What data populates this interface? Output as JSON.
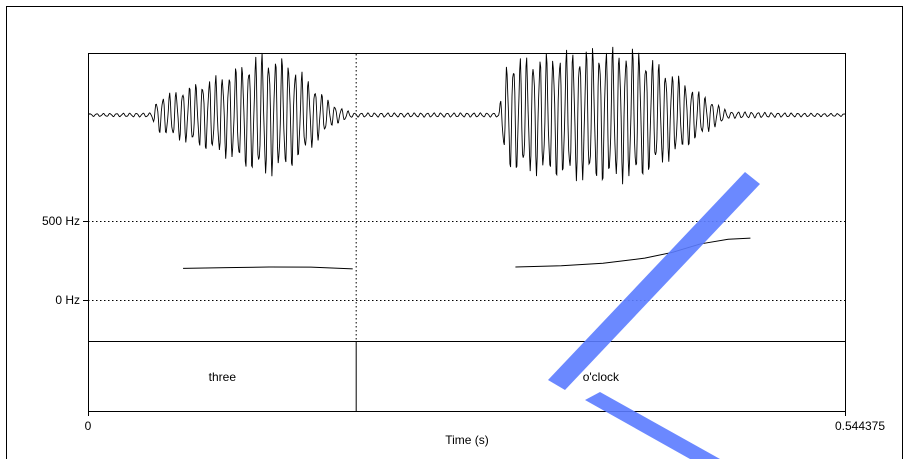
{
  "watermark": {
    "color": "#5b7cff"
  },
  "axes": {
    "time_label": "Time (s)",
    "time_start_label": "0",
    "time_end_label": "0.544375",
    "pitch_high_label": "500 Hz",
    "pitch_low_label": "0 Hz"
  },
  "chart_data": {
    "type": "line",
    "x_unit": "s",
    "xlim": [
      0,
      0.544375
    ],
    "pitch_ylim": [
      0,
      500
    ],
    "word_boundary_time": 0.1925,
    "words": [
      {
        "label": "three",
        "start": 0.0,
        "end": 0.1925
      },
      {
        "label": "o'clock",
        "start": 0.1925,
        "end": 0.544375
      }
    ],
    "series": [
      {
        "x": [
          0.068,
          0.1,
          0.13,
          0.16,
          0.19
        ],
        "y": [
          203,
          208,
          212,
          211,
          200
        ]
      },
      {
        "x": [
          0.307,
          0.34,
          0.37,
          0.4,
          0.42,
          0.44,
          0.46,
          0.476
        ],
        "y": [
          212,
          220,
          236,
          268,
          305,
          358,
          388,
          395
        ]
      }
    ],
    "waveform_envelope": {
      "x": [
        0.0,
        0.045,
        0.05,
        0.07,
        0.1,
        0.125,
        0.145,
        0.16,
        0.175,
        0.19,
        0.295,
        0.3,
        0.305,
        0.32,
        0.345,
        0.37,
        0.395,
        0.42,
        0.44,
        0.46,
        0.5,
        0.544375
      ],
      "y": [
        0.02,
        0.03,
        0.25,
        0.4,
        0.62,
        0.9,
        0.78,
        0.48,
        0.16,
        0.03,
        0.03,
        0.72,
        0.82,
        0.85,
        0.93,
        0.98,
        0.95,
        0.62,
        0.32,
        0.05,
        0.03,
        0.02
      ]
    }
  }
}
